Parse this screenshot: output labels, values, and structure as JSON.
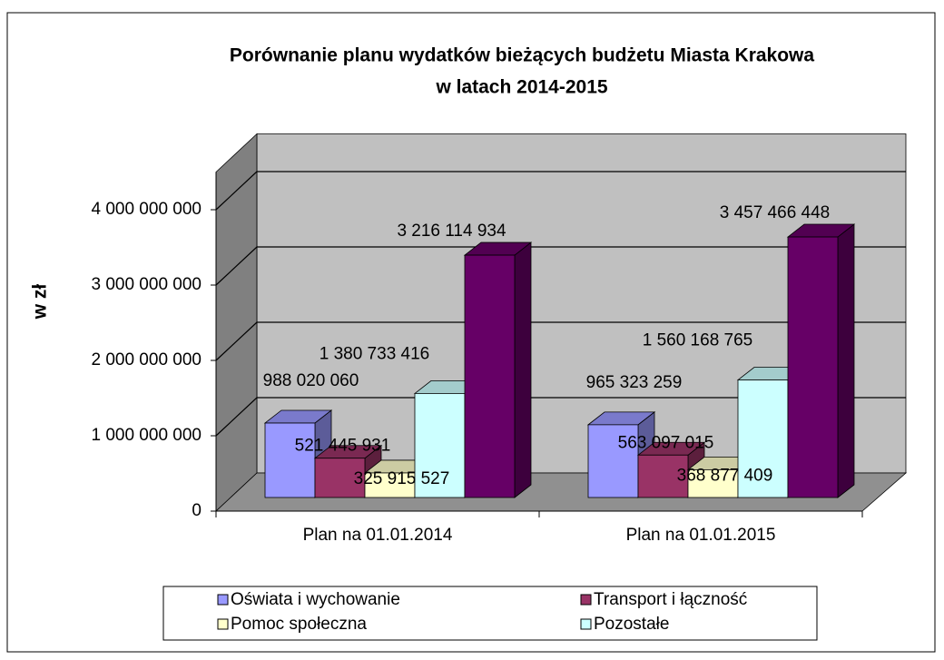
{
  "chart_data": {
    "type": "bar3d",
    "title": [
      "Porównanie planu wydatków bieżących budżetu Miasta Krakowa",
      "w latach 2014-2015"
    ],
    "y_label": "w zł",
    "categories": [
      "Plan na 01.01.2014",
      "Plan na 01.01.2015"
    ],
    "series": [
      {
        "name": "Oświata i wychowanie",
        "color": "#9999ff",
        "values": [
          988020060,
          965323259
        ],
        "value_labels": [
          "988 020 060",
          "965 323 259"
        ]
      },
      {
        "name": "Transport i łączność",
        "color": "#993366",
        "values": [
          521445931,
          563097015
        ],
        "value_labels": [
          "521 445 931",
          "563 097 015"
        ]
      },
      {
        "name": "Pomoc społeczna",
        "color": "#ffffcc",
        "values": [
          325915527,
          368877409
        ],
        "value_labels": [
          "325 915 527",
          "368 877 409"
        ]
      },
      {
        "name": "Pozostałe",
        "color": "#ccffff",
        "values": [
          1380733416,
          1560168765
        ],
        "value_labels": [
          "1 380 733 416",
          "1 560 168 765"
        ]
      },
      {
        "color": "#660066",
        "values": [
          3216114934,
          3457466448
        ],
        "value_labels": [
          "3 216 114 934",
          "3 457 466 448"
        ]
      }
    ],
    "ylim": [
      0,
      4500000000
    ],
    "yticks": [
      0,
      {
        "value": 1000000000,
        "label": "1 000 000 000"
      },
      {
        "value": 2000000000,
        "label": "2 000 000 000"
      },
      {
        "value": 3000000000,
        "label": "3 000 000 000"
      },
      {
        "value": 4000000000,
        "label": "4 000 000 000"
      }
    ],
    "grid": true
  }
}
